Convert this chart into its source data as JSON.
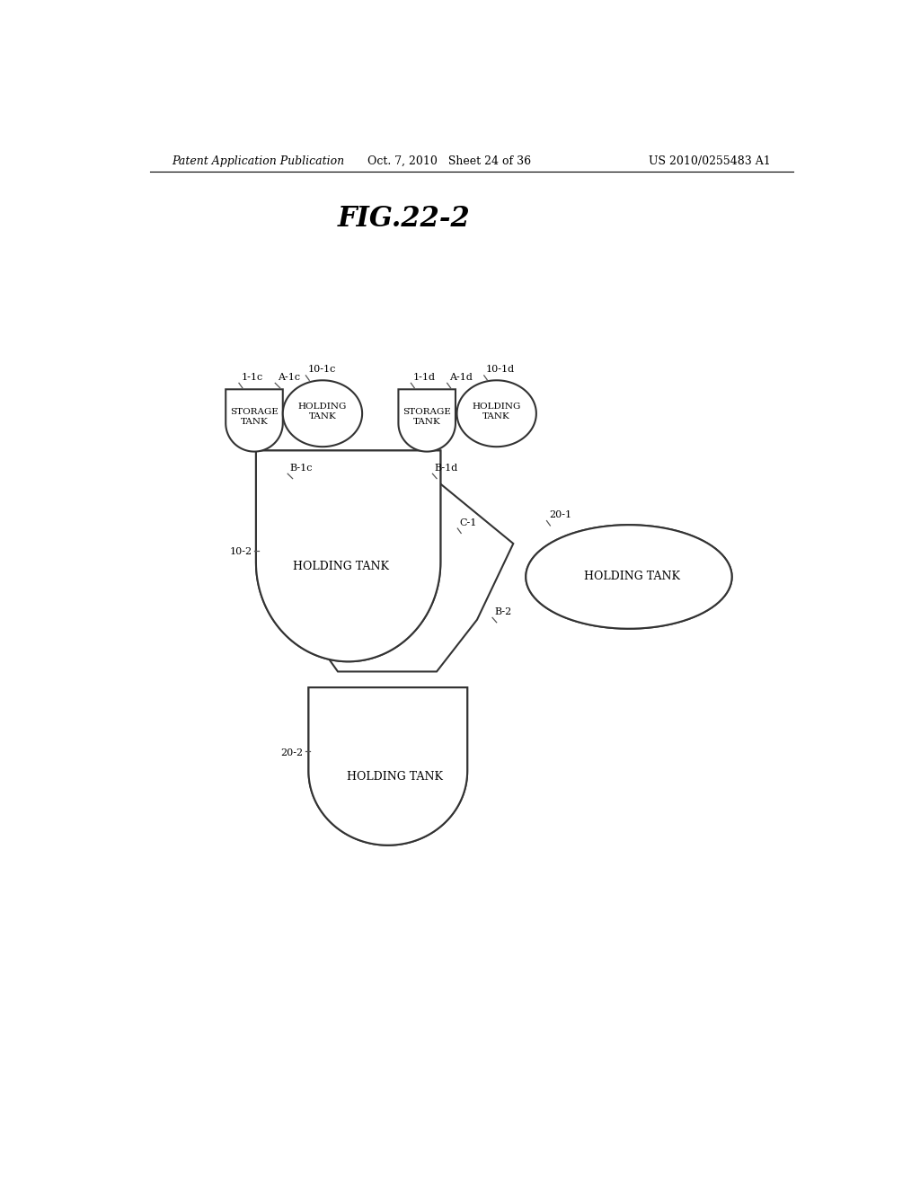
{
  "title": "FIG.22-2",
  "header_left": "Patent Application Publication",
  "header_center": "Oct. 7, 2010   Sheet 24 of 36",
  "header_right": "US 2010/0255483 A1",
  "bg_color": "#ffffff",
  "line_color": "#333333",
  "labels": {
    "1_1c": "1-1c",
    "A_1c": "A-1c",
    "10_1c": "10-1c",
    "1_1d": "1-1d",
    "A_1d": "A-1d",
    "10_1d": "10-1d",
    "B_1c": "B-1c",
    "B_1d": "B-1d",
    "C_1": "C-1",
    "10_2": "10-2",
    "20_1": "20-1",
    "B_2": "B-2",
    "20_2": "20-2",
    "storage_tank_c": "STORAGE\nTANK",
    "holding_tank_c_small": "HOLDING\nTANK",
    "storage_tank_d": "STORAGE\nTANK",
    "holding_tank_d_small": "HOLDING\nTANK",
    "holding_tank_main": "HOLDING TANK",
    "holding_tank_right": "HOLDING TANK",
    "holding_tank_bottom": "HOLDING TANK"
  }
}
